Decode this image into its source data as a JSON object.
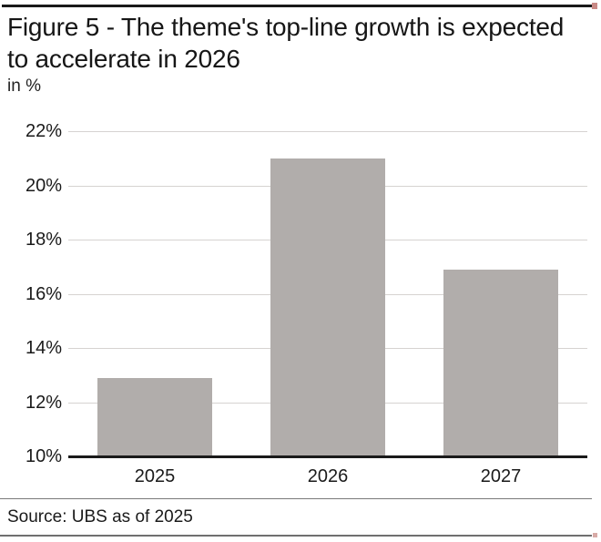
{
  "figure": {
    "title": "Figure 5 - The theme's top-line growth is expected to accelerate in 2026",
    "unit_label": "in %",
    "source": "Source: UBS as of 2025"
  },
  "colors": {
    "bar": "#b1adab",
    "grid": "#d6d3d1",
    "axis": "#1a1a1a",
    "text": "#1a1a1a",
    "top_rule": "#1a1a1a",
    "bottom_rule": "#6f6f6f",
    "accent_red": "#c98a86"
  },
  "chart_data": {
    "type": "bar",
    "categories": [
      "2025",
      "2026",
      "2027"
    ],
    "values": [
      12.9,
      21.0,
      16.9
    ],
    "title": "Figure 5 - The theme's top-line growth is expected to accelerate in 2026",
    "xlabel": "",
    "ylabel": "in %",
    "ylim": [
      10,
      22
    ],
    "yticks": [
      22,
      20,
      18,
      16,
      14,
      12,
      10
    ],
    "ytick_labels": [
      "22%",
      "20%",
      "18%",
      "16%",
      "14%",
      "12%",
      "10%"
    ],
    "grid": true,
    "legend": false,
    "bar_color": "#b1adab"
  }
}
